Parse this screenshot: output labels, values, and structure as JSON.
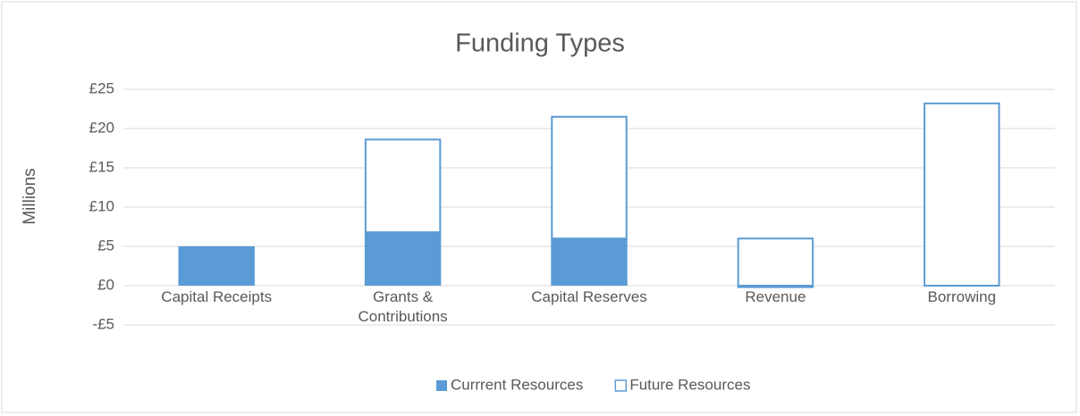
{
  "chart_data": {
    "type": "stacked-bar",
    "title": "Funding Types",
    "y_axis_label": "Millions",
    "categories": [
      "Capital Receipts",
      "Grants & Contributions",
      "Capital Reserves",
      "Revenue",
      "Borrowing"
    ],
    "series": [
      {
        "name": "Currrent Resources",
        "color": "#5b9bd5",
        "fill": "solid",
        "values": [
          4.9,
          6.8,
          6.0,
          -0.3,
          0
        ]
      },
      {
        "name": "Future Resources",
        "color": "#5b9bd5",
        "fill": "outline",
        "values": [
          0,
          11.8,
          15.5,
          6.0,
          23.2
        ]
      }
    ],
    "ylim": [
      -5,
      25
    ],
    "yticks": [
      {
        "value": -5,
        "label": "-£5"
      },
      {
        "value": 0,
        "label": "£0"
      },
      {
        "value": 5,
        "label": "£5"
      },
      {
        "value": 10,
        "label": "£10"
      },
      {
        "value": 15,
        "label": "£15"
      },
      {
        "value": 20,
        "label": "£20"
      },
      {
        "value": 25,
        "label": "£25"
      }
    ],
    "grid": true,
    "legend": "bottom"
  }
}
